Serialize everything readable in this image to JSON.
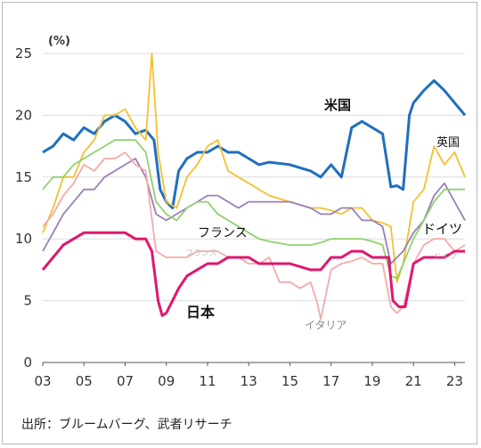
{
  "chart_data": {
    "type": "line",
    "title": "",
    "ylabel": "(%)",
    "xlabel": "",
    "ylim": [
      0,
      25
    ],
    "xlim": [
      2003,
      2023.5
    ],
    "yticks": [
      0,
      5,
      10,
      15,
      20,
      25
    ],
    "xtick_labels": [
      "03",
      "05",
      "07",
      "09",
      "11",
      "13",
      "15",
      "17",
      "19",
      "21",
      "23"
    ],
    "grid": "horizontal",
    "series": [
      {
        "name": "米国",
        "color": "#1f6fbf",
        "x": [
          2003,
          2003.5,
          2004,
          2004.5,
          2005,
          2005.5,
          2006,
          2006.5,
          2007,
          2007.5,
          2008,
          2008.4,
          2008.7,
          2009,
          2009.3,
          2009.6,
          2010,
          2010.5,
          2011,
          2011.5,
          2012,
          2012.5,
          2013,
          2013.5,
          2014,
          2015,
          2016,
          2016.5,
          2017,
          2017.5,
          2018,
          2018.5,
          2019,
          2019.5,
          2019.9,
          2020.2,
          2020.5,
          2020.8,
          2021,
          2021.5,
          2022,
          2022.5,
          2023,
          2023.5
        ],
        "values": [
          17,
          17.5,
          18.5,
          18,
          19,
          18.5,
          19.5,
          20,
          19.5,
          18.5,
          18.8,
          18,
          14,
          13,
          12.5,
          15.5,
          16.5,
          17,
          17,
          17.5,
          17,
          17,
          16.5,
          16,
          16.2,
          16,
          15.5,
          15,
          16,
          15,
          19,
          19.5,
          19,
          18.5,
          14.2,
          14.3,
          14,
          20,
          21,
          22,
          22.8,
          22,
          21,
          20
        ]
      },
      {
        "name": "英国",
        "color": "#f5c02f",
        "x": [
          2003,
          2003.5,
          2004,
          2004.5,
          2005,
          2005.5,
          2006,
          2006.5,
          2007,
          2007.5,
          2008,
          2008.3,
          2008.6,
          2009,
          2009.5,
          2010,
          2010.5,
          2011,
          2011.5,
          2012,
          2012.5,
          2013,
          2013.5,
          2014,
          2015,
          2016,
          2016.5,
          2017,
          2017.5,
          2018,
          2018.5,
          2019,
          2019.5,
          2019.9,
          2020.2,
          2020.5,
          2020.8,
          2021,
          2021.5,
          2022,
          2022.5,
          2023,
          2023.5
        ],
        "values": [
          10.5,
          12.5,
          15,
          15,
          17,
          18,
          20,
          20,
          20.5,
          19,
          18,
          25,
          17,
          13,
          12.5,
          15,
          16,
          17.5,
          18,
          15.5,
          15,
          14.5,
          14,
          13.5,
          13,
          12.5,
          12.5,
          12.3,
          12,
          12.5,
          12.5,
          11.5,
          11.3,
          11,
          6.5,
          8,
          11,
          13,
          14,
          17.5,
          16,
          17,
          15
        ]
      },
      {
        "name": "ドイツ",
        "color": "#9a7fb9",
        "x": [
          2003,
          2003.5,
          2004,
          2004.5,
          2005,
          2005.5,
          2006,
          2006.5,
          2007,
          2007.5,
          2008,
          2008.5,
          2009,
          2009.5,
          2010,
          2010.5,
          2011,
          2011.5,
          2012,
          2012.5,
          2013,
          2013.5,
          2014,
          2015,
          2016,
          2016.5,
          2017,
          2017.5,
          2018,
          2018.5,
          2019,
          2019.5,
          2019.9,
          2020.2,
          2020.5,
          2021,
          2021.5,
          2022,
          2022.5,
          2023,
          2023.5
        ],
        "values": [
          9,
          10.5,
          12,
          13,
          14,
          14,
          15,
          15.5,
          16,
          16.5,
          15,
          12,
          11.5,
          12,
          12.5,
          13,
          13.5,
          13.5,
          13,
          12.5,
          13,
          13,
          13,
          13,
          12.5,
          12,
          12,
          12.5,
          12.5,
          11.5,
          11.5,
          11,
          8,
          8.5,
          9,
          10.5,
          11.5,
          13.5,
          14.5,
          13,
          11.5
        ]
      },
      {
        "name": "フランス",
        "color": "#8fd16e",
        "x": [
          2003,
          2003.5,
          2004,
          2004.5,
          2005,
          2005.5,
          2006,
          2006.5,
          2007,
          2007.5,
          2008,
          2008.5,
          2009,
          2009.5,
          2010,
          2010.5,
          2011,
          2011.5,
          2012,
          2012.5,
          2013,
          2013.5,
          2014,
          2015,
          2016,
          2016.5,
          2017,
          2017.5,
          2018,
          2018.5,
          2019,
          2019.5,
          2019.9,
          2020.2,
          2020.5,
          2021,
          2021.5,
          2022,
          2022.5,
          2023,
          2023.5
        ],
        "values": [
          14,
          15,
          15,
          16,
          16.5,
          17,
          17.5,
          18,
          18,
          18,
          17,
          13,
          12,
          11.5,
          12.5,
          13,
          13,
          12,
          11.5,
          11,
          10.5,
          10,
          9.8,
          9.5,
          9.5,
          9.7,
          10,
          10,
          10,
          10,
          9.8,
          9.5,
          7,
          6.8,
          8,
          10,
          11.5,
          13,
          14,
          14,
          14
        ]
      },
      {
        "name": "イタリア",
        "color": "#f4aaaa",
        "x": [
          2003,
          2003.5,
          2004,
          2004.5,
          2005,
          2005.5,
          2006,
          2006.5,
          2007,
          2007.5,
          2008,
          2008.5,
          2009,
          2009.5,
          2010,
          2010.5,
          2011,
          2011.5,
          2012,
          2012.5,
          2013,
          2013.5,
          2014,
          2014.5,
          2015,
          2015.5,
          2016,
          2016.3,
          2016.5,
          2017,
          2017.5,
          2018,
          2018.5,
          2019,
          2019.5,
          2019.9,
          2020.2,
          2020.5,
          2021,
          2021.5,
          2022,
          2022.5,
          2023,
          2023.5
        ],
        "values": [
          11,
          12,
          13.5,
          14.5,
          16,
          15.5,
          16.5,
          16.5,
          17,
          16,
          15.5,
          9,
          8.5,
          8.5,
          8.5,
          9,
          9,
          9,
          8.5,
          8.5,
          8,
          8,
          8.5,
          6.5,
          6.5,
          6,
          6.5,
          5,
          3.5,
          7.5,
          8,
          8.2,
          8.5,
          8,
          8,
          4.5,
          4,
          4.5,
          8,
          9.5,
          10,
          10,
          9,
          9.5
        ]
      },
      {
        "name": "日本",
        "color": "#e0176e",
        "x": [
          2003,
          2003.5,
          2004,
          2004.5,
          2005,
          2005.5,
          2006,
          2006.5,
          2007,
          2007.5,
          2008,
          2008.3,
          2008.6,
          2008.8,
          2009,
          2009.3,
          2009.6,
          2010,
          2010.5,
          2011,
          2011.5,
          2012,
          2012.5,
          2013,
          2013.5,
          2014,
          2015,
          2016,
          2016.5,
          2017,
          2017.5,
          2018,
          2018.5,
          2019,
          2019.5,
          2019.8,
          2020,
          2020.3,
          2020.6,
          2021,
          2021.5,
          2022,
          2022.5,
          2023,
          2023.5
        ],
        "values": [
          7.5,
          8.5,
          9.5,
          10,
          10.5,
          10.5,
          10.5,
          10.5,
          10.5,
          10,
          10,
          9,
          5,
          3.8,
          4,
          5,
          6,
          7,
          7.5,
          8,
          8,
          8.5,
          8.5,
          8.5,
          8,
          8,
          8,
          7.5,
          7.5,
          8.5,
          8.5,
          9,
          9,
          8.5,
          8.5,
          8.5,
          5,
          4.5,
          4.5,
          8,
          8.5,
          8.5,
          8.5,
          9,
          9
        ]
      }
    ],
    "annotations": [
      {
        "text": "米国",
        "series": "米国"
      },
      {
        "text": "英国",
        "series": "英国"
      },
      {
        "text": "ドイツ",
        "series": "ドイツ"
      },
      {
        "text": "フランス",
        "series": "フランス"
      },
      {
        "text": "イタリア",
        "series": "イタリア"
      },
      {
        "text": "日本",
        "series": "日本"
      },
      {
        "text": "フランス",
        "series": "フランス",
        "faint": true
      },
      {
        "text": "ドイツ",
        "series": "ドイツ",
        "faint": true
      }
    ]
  },
  "source_note": "出所：ブルームバーグ、武者リサーチ"
}
